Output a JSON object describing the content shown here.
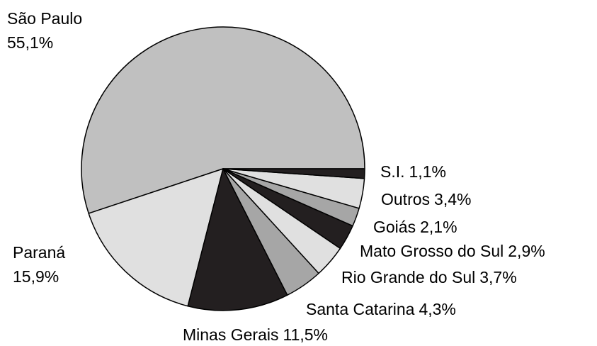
{
  "chart_data": {
    "type": "pie",
    "categories": [
      "São Paulo",
      "Paraná",
      "Minas Gerais",
      "Santa Catarina",
      "Rio Grande do Sul",
      "Mato Grosso do Sul",
      "Goiás",
      "Outros",
      "S.I."
    ],
    "values": [
      55.1,
      15.9,
      11.5,
      4.3,
      3.7,
      2.9,
      2.1,
      3.4,
      1.1
    ],
    "value_labels": [
      "55,1%",
      "15,9%",
      "11,5%",
      "4,3%",
      "3,7%",
      "2,9%",
      "2,1%",
      "3,4%",
      "1,1%"
    ],
    "colors": [
      "#c0c0c0",
      "#e0e0e0",
      "#231f20",
      "#a6a6a6",
      "#e0e0e0",
      "#231f20",
      "#a6a6a6",
      "#e0e0e0",
      "#231f20"
    ]
  }
}
